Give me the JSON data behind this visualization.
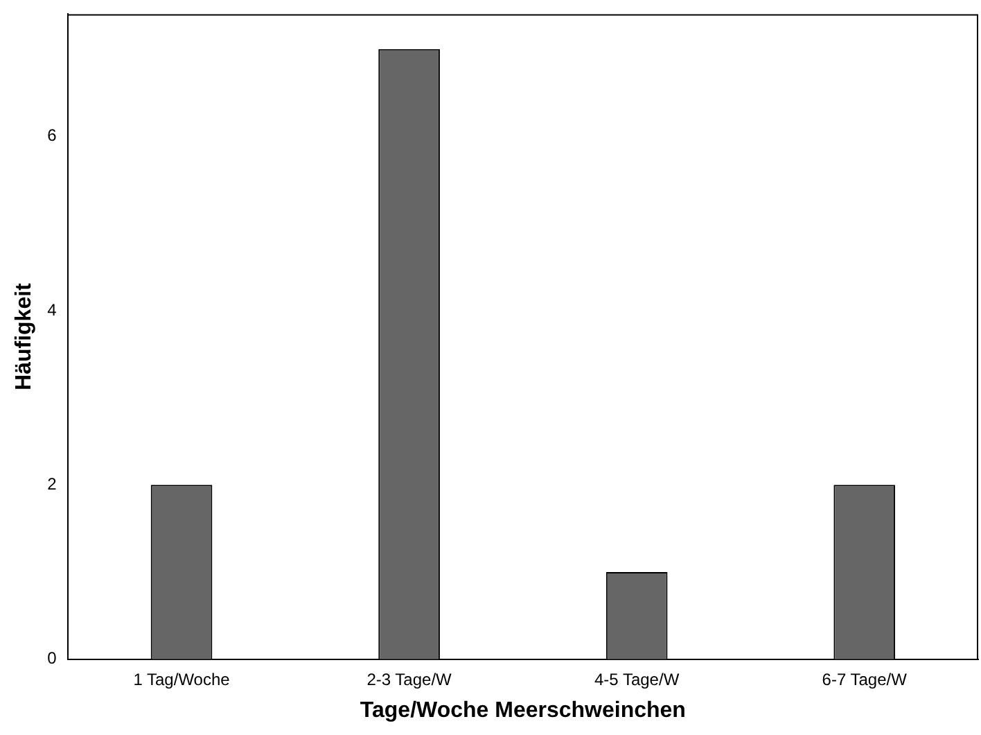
{
  "chart_data": {
    "type": "bar",
    "xlabel": "Tage/Woche Meerschweinchen",
    "ylabel": "Häufigkeit",
    "categories": [
      "1 Tag/Woche",
      "2-3 Tage/W",
      "4-5 Tage/W",
      "6-7 Tage/W"
    ],
    "values": [
      2,
      7,
      1,
      2
    ],
    "color": "#666666",
    "ylim": [
      0,
      7.4
    ],
    "yticks": [
      0,
      2,
      4,
      6
    ],
    "grid": false,
    "legend": false
  }
}
